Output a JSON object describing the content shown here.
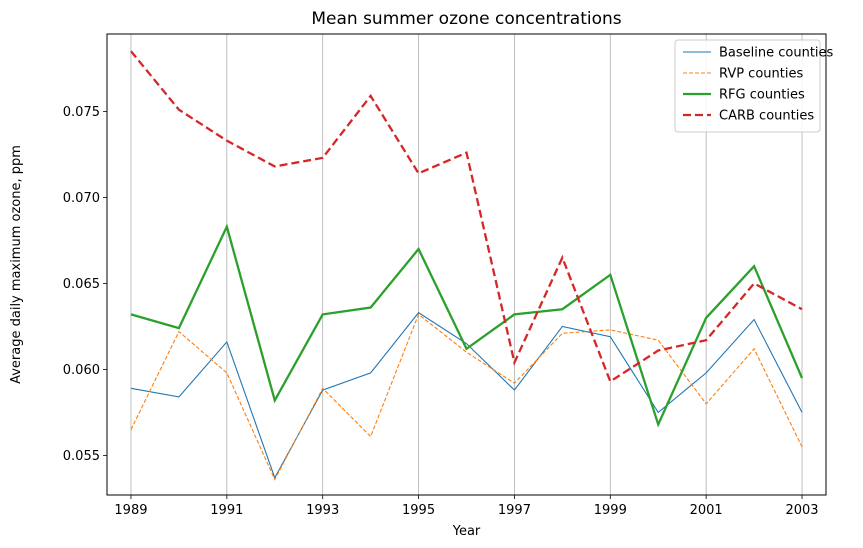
{
  "chart_data": {
    "type": "line",
    "title": "Mean summer ozone concentrations",
    "xlabel": "Year",
    "ylabel": "Average daily maximum ozone, ppm",
    "x": [
      1989,
      1990,
      1991,
      1992,
      1993,
      1994,
      1995,
      1996,
      1997,
      1998,
      1999,
      2000,
      2001,
      2002,
      2003
    ],
    "xticks": [
      "1989",
      "1991",
      "1993",
      "1995",
      "1997",
      "1999",
      "2001",
      "2003"
    ],
    "yticks": [
      "0.055",
      "0.060",
      "0.065",
      "0.070",
      "0.075"
    ],
    "xlim": [
      1988.5,
      2003.5
    ],
    "ylim": [
      0.0527,
      0.0795
    ],
    "grid": "vertical lines at x ticks",
    "legend_position": "top-right",
    "series": [
      {
        "name": "Baseline counties",
        "color": "#1f77b4",
        "style": "solid-thin",
        "values": [
          0.0589,
          0.0584,
          0.0616,
          0.0537,
          0.0588,
          0.0598,
          0.0633,
          0.0615,
          0.0588,
          0.0625,
          0.0619,
          0.0575,
          0.0598,
          0.0629,
          0.0575
        ]
      },
      {
        "name": "RVP counties",
        "color": "#ff7f0e",
        "style": "dashed-thin",
        "values": [
          0.0565,
          0.0622,
          0.0598,
          0.0536,
          0.0589,
          0.0561,
          0.0632,
          0.061,
          0.0592,
          0.0621,
          0.0623,
          0.0617,
          0.058,
          0.0612,
          0.0555
        ]
      },
      {
        "name": "RFG counties",
        "color": "#2ca02c",
        "style": "solid-thick",
        "values": [
          0.0632,
          0.0624,
          0.0683,
          0.0582,
          0.0632,
          0.0636,
          0.067,
          0.0612,
          0.0632,
          0.0635,
          0.0655,
          0.0568,
          0.063,
          0.066,
          0.0595
        ]
      },
      {
        "name": "CARB counties",
        "color": "#d62728",
        "style": "dashed-thick",
        "values": [
          0.0785,
          0.0751,
          0.0733,
          0.0718,
          0.0723,
          0.0759,
          0.0714,
          0.0726,
          0.0604,
          0.0665,
          0.0593,
          0.0611,
          0.0617,
          0.065,
          0.0635
        ]
      }
    ]
  }
}
